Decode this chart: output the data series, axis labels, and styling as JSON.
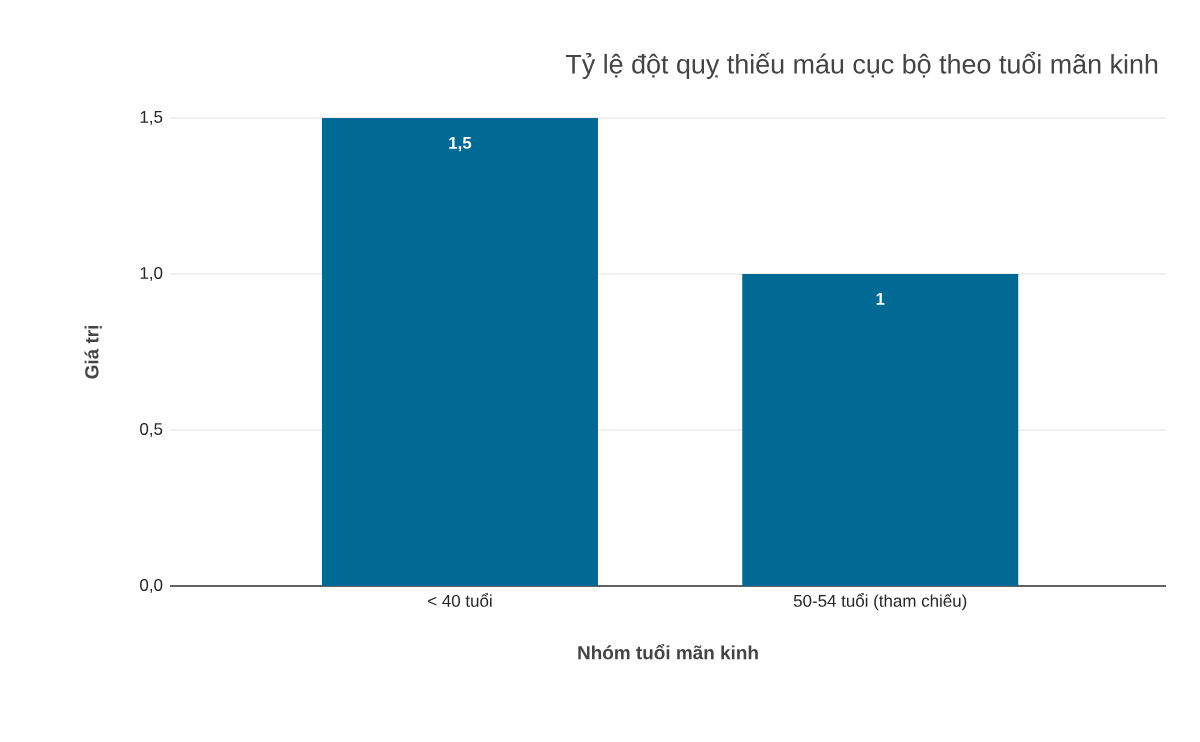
{
  "chart_data": {
    "type": "bar",
    "title": "Tỷ lệ đột quỵ thiếu máu cục bộ theo tuổi mãn kinh",
    "xlabel": "Nhóm tuổi mãn kinh",
    "ylabel": "Giá trị",
    "categories": [
      "< 40 tuổi",
      "50-54 tuổi (tham chiếu)"
    ],
    "values": [
      1.5,
      1
    ],
    "value_labels": [
      "1,5",
      "1"
    ],
    "color": "#006994",
    "ylim": [
      0,
      1.5
    ],
    "yticks": [
      {
        "value": 0,
        "label": "0,0"
      },
      {
        "value": 0.5,
        "label": "0,5"
      },
      {
        "value": 1,
        "label": "1,0"
      },
      {
        "value": 1.5,
        "label": "1,5"
      }
    ],
    "grid": "y"
  }
}
